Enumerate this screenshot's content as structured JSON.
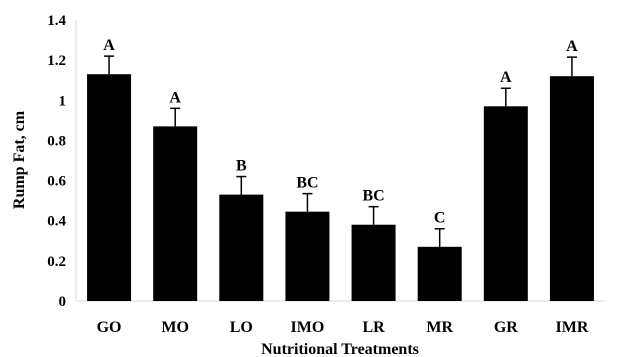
{
  "chart_data": {
    "type": "bar",
    "title": "",
    "xlabel": "Nutritional Treatments",
    "ylabel": "Rump Fat, cm",
    "ylim": [
      0,
      1.4
    ],
    "yticks": [
      "0",
      "0.2",
      "0.4",
      "0.6",
      "0.8",
      "1",
      "1.2",
      "1.4"
    ],
    "categories": [
      "GO",
      "MO",
      "LO",
      "IMO",
      "LR",
      "MR",
      "GR",
      "IMR"
    ],
    "values": [
      1.13,
      0.87,
      0.53,
      0.445,
      0.38,
      0.27,
      0.97,
      1.12
    ],
    "error": [
      0.09,
      0.09,
      0.09,
      0.09,
      0.09,
      0.09,
      0.09,
      0.095
    ],
    "significance_labels": [
      "A",
      "A",
      "B",
      "BC",
      "BC",
      "C",
      "A",
      "A"
    ],
    "grid": false,
    "legend": "none",
    "colors": {
      "bar": "#000000",
      "axis": "#d9d9d9",
      "text": "#000000"
    }
  }
}
